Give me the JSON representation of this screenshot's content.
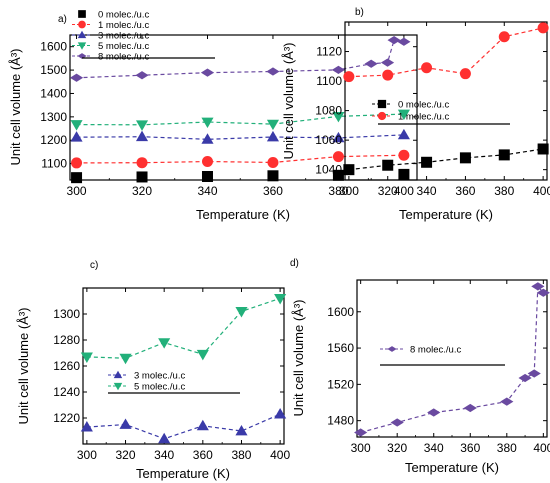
{
  "chart_data": [
    {
      "type": "scatter",
      "panel": "a)",
      "xlabel": "Temperature (K)",
      "ylabel": "Unit cell volume (Å³)",
      "xlim": [
        298,
        404
      ],
      "ylim": [
        1030,
        1650
      ],
      "xticks": [
        300,
        320,
        340,
        360,
        380,
        400
      ],
      "yticks": [
        1100,
        1200,
        1300,
        1400,
        1500,
        1600
      ],
      "legend_position": "top-left",
      "series": [
        {
          "name": "0 molec./u.c",
          "color": "#000000",
          "marker": "square",
          "line": false,
          "x": [
            300,
            320,
            340,
            360,
            380,
            400
          ],
          "y": [
            1040,
            1043,
            1045,
            1048,
            1050,
            1054
          ]
        },
        {
          "name": "1 molec./u.c",
          "color": "#ff3030",
          "marker": "circle",
          "line": true,
          "x": [
            300,
            320,
            340,
            360,
            380,
            400
          ],
          "y": [
            1103,
            1104,
            1109,
            1105,
            1130,
            1136
          ]
        },
        {
          "name": "3 molec./u.c",
          "color": "#3a3aa8",
          "marker": "triangle-up",
          "line": true,
          "x": [
            300,
            320,
            340,
            360,
            380,
            400
          ],
          "y": [
            1213,
            1215,
            1204,
            1214,
            1210,
            1223
          ]
        },
        {
          "name": "5 molec./u.c",
          "color": "#22b07a",
          "marker": "triangle-down",
          "line": true,
          "x": [
            300,
            320,
            340,
            360,
            380,
            400
          ],
          "y": [
            1267,
            1266,
            1278,
            1269,
            1302,
            1312
          ]
        },
        {
          "name": "8 molec./u.c",
          "color": "#6a4aa0",
          "marker": "diamond",
          "line": true,
          "x": [
            300,
            320,
            340,
            360,
            380,
            390,
            395,
            397,
            400
          ],
          "y": [
            1467,
            1478,
            1489,
            1494,
            1501,
            1527,
            1532,
            1628,
            1621
          ]
        }
      ]
    },
    {
      "type": "scatter",
      "panel": "b)",
      "xlabel": "Temperature (K)",
      "ylabel": "Unit cell volume (Å³)",
      "xlim": [
        298,
        402
      ],
      "ylim": [
        1033,
        1140
      ],
      "xticks": [
        300,
        320,
        340,
        360,
        380,
        400
      ],
      "yticks": [
        1040,
        1060,
        1080,
        1100,
        1120
      ],
      "legend_position": "middle-left",
      "series": [
        {
          "name": "0 molec./u.c",
          "color": "#000000",
          "marker": "square",
          "line": true,
          "x": [
            300,
            320,
            340,
            360,
            380,
            400
          ],
          "y": [
            1040,
            1043,
            1045,
            1048,
            1050,
            1054
          ]
        },
        {
          "name": "1 molec./u.c",
          "color": "#ff3030",
          "marker": "circle",
          "line": true,
          "x": [
            300,
            320,
            340,
            360,
            380,
            400
          ],
          "y": [
            1103,
            1104,
            1109,
            1105,
            1130,
            1136
          ]
        }
      ]
    },
    {
      "type": "scatter",
      "panel": "c)",
      "xlabel": "Temperature (K)",
      "ylabel": "Unit cell volume (Å³)",
      "xlim": [
        298,
        402
      ],
      "ylim": [
        1200,
        1320
      ],
      "xticks": [
        300,
        320,
        340,
        360,
        380,
        400
      ],
      "yticks": [
        1220,
        1240,
        1260,
        1280,
        1300
      ],
      "legend_position": "middle-left",
      "series": [
        {
          "name": "3 molec./u.c",
          "color": "#3a3aa8",
          "marker": "triangle-up",
          "line": true,
          "x": [
            300,
            320,
            340,
            360,
            380,
            400
          ],
          "y": [
            1213,
            1215,
            1204,
            1214,
            1210,
            1223
          ]
        },
        {
          "name": "5 molec./u.c",
          "color": "#22b07a",
          "marker": "triangle-down",
          "line": true,
          "x": [
            300,
            320,
            340,
            360,
            380,
            400
          ],
          "y": [
            1267,
            1266,
            1278,
            1269,
            1302,
            1312
          ]
        }
      ]
    },
    {
      "type": "scatter",
      "panel": "d)",
      "xlabel": "Temperature (K)",
      "ylabel": "Unit cell volume (Å³)",
      "xlim": [
        298,
        402
      ],
      "ylim": [
        1462,
        1635
      ],
      "xticks": [
        300,
        320,
        340,
        360,
        380,
        400
      ],
      "yticks": [
        1480,
        1520,
        1560,
        1600
      ],
      "legend_position": "top-left",
      "series": [
        {
          "name": "8 molec./u.c",
          "color": "#6a4aa0",
          "marker": "diamond",
          "line": true,
          "x": [
            300,
            320,
            340,
            360,
            380,
            390,
            395,
            397,
            400
          ],
          "y": [
            1467,
            1478,
            1489,
            1494,
            1501,
            1527,
            1532,
            1628,
            1621
          ]
        }
      ]
    }
  ]
}
